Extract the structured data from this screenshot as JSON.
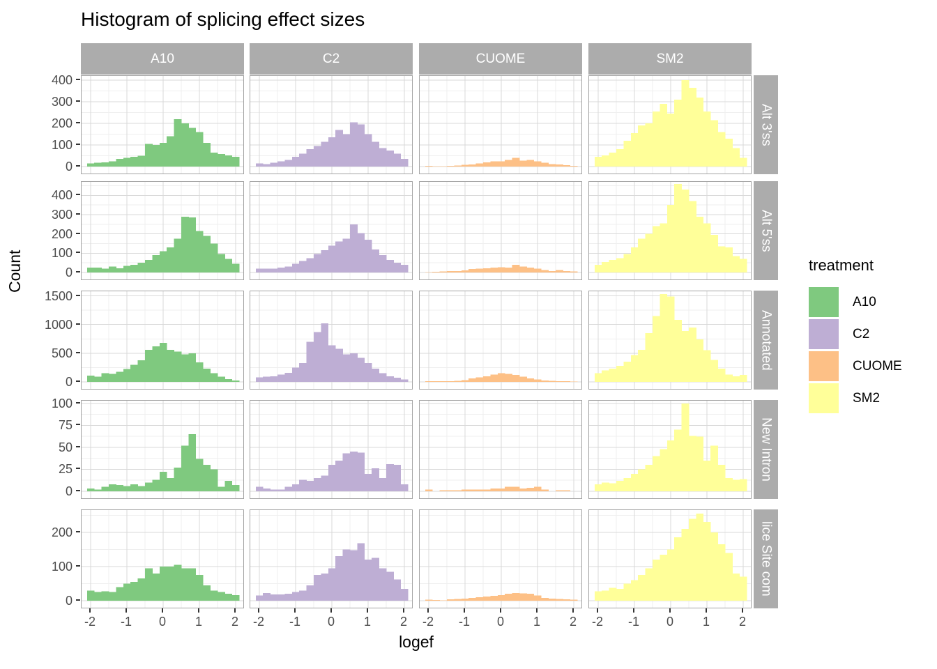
{
  "title": "Histogram of splicing effect sizes",
  "axes": {
    "x_label": "logef",
    "y_label": "Count",
    "x_ticks": [
      -2,
      -1,
      0,
      1,
      2
    ]
  },
  "legend": {
    "title": "treatment",
    "entries": [
      {
        "label": "A10",
        "color": "#7FC97F"
      },
      {
        "label": "C2",
        "color": "#BEAED4"
      },
      {
        "label": "CUOME",
        "color": "#FDC086"
      },
      {
        "label": "SM2",
        "color": "#FFFF99"
      }
    ]
  },
  "facets": {
    "columns": [
      "A10",
      "C2",
      "CUOME",
      "SM2"
    ],
    "rows": [
      "Alt 3'ss",
      "Alt 5'ss",
      "Annotated",
      "New Intron",
      "lice Site com"
    ]
  },
  "style": {
    "strip_bg": "#ACACAC",
    "strip_text": "#FFFFFF",
    "grid_major": "#D9D9D9",
    "grid_minor": "#EFEFEF",
    "panel_border": "#A3A3A3",
    "tick_text": "#4D4D4D"
  },
  "chart_data": {
    "type": "bar",
    "subtype": "faceted-histogram-grid",
    "title": "Histogram of splicing effect sizes",
    "xlabel": "logef",
    "ylabel": "Count",
    "x_ticks": [
      -2,
      -1,
      0,
      1,
      2
    ],
    "x_range": [
      -2.25,
      2.25
    ],
    "bin_width": 0.2,
    "bin_centers": [
      -2.0,
      -1.8,
      -1.6,
      -1.4,
      -1.2,
      -1.0,
      -0.8,
      -0.6,
      -0.4,
      -0.2,
      0.0,
      0.2,
      0.4,
      0.6,
      0.8,
      1.0,
      1.2,
      1.4,
      1.6,
      1.8,
      2.0
    ],
    "columns": [
      "A10",
      "C2",
      "CUOME",
      "SM2"
    ],
    "rows": [
      {
        "label": "Alt 3'ss",
        "y_ticks": [
          0,
          100,
          200,
          300,
          400
        ],
        "y_max": 420,
        "counts": {
          "A10": [
            15,
            18,
            20,
            25,
            35,
            40,
            45,
            50,
            105,
            100,
            110,
            140,
            220,
            200,
            180,
            160,
            110,
            65,
            58,
            52,
            45
          ],
          "C2": [
            15,
            12,
            18,
            25,
            30,
            45,
            60,
            80,
            95,
            115,
            135,
            170,
            150,
            205,
            195,
            150,
            115,
            85,
            75,
            60,
            35
          ],
          "CUOME": [
            3,
            1,
            2,
            3,
            5,
            8,
            10,
            15,
            20,
            25,
            25,
            30,
            40,
            28,
            30,
            25,
            18,
            12,
            10,
            6,
            3
          ],
          "SM2": [
            45,
            52,
            65,
            80,
            120,
            155,
            190,
            200,
            255,
            290,
            245,
            310,
            400,
            365,
            320,
            255,
            215,
            160,
            130,
            85,
            40
          ]
        }
      },
      {
        "label": "Alt 5'ss",
        "y_ticks": [
          0,
          100,
          200,
          300,
          400
        ],
        "y_max": 470,
        "counts": {
          "A10": [
            25,
            25,
            20,
            30,
            22,
            35,
            40,
            50,
            65,
            90,
            110,
            130,
            175,
            290,
            285,
            215,
            190,
            150,
            95,
            70,
            45
          ],
          "C2": [
            20,
            20,
            20,
            25,
            30,
            45,
            60,
            75,
            95,
            115,
            140,
            160,
            175,
            250,
            205,
            170,
            120,
            90,
            65,
            50,
            40
          ],
          "CUOME": [
            2,
            3,
            5,
            8,
            8,
            10,
            18,
            20,
            22,
            25,
            28,
            25,
            40,
            30,
            25,
            20,
            12,
            8,
            12,
            8,
            5
          ],
          "SM2": [
            40,
            55,
            65,
            75,
            95,
            130,
            175,
            200,
            240,
            255,
            350,
            460,
            430,
            370,
            290,
            255,
            195,
            135,
            130,
            85,
            70
          ]
        }
      },
      {
        "label": "Annotated",
        "y_ticks": [
          0,
          500,
          1000,
          1500
        ],
        "y_max": 1580,
        "counts": {
          "A10": [
            110,
            90,
            150,
            140,
            175,
            225,
            300,
            375,
            560,
            620,
            680,
            560,
            530,
            480,
            500,
            340,
            230,
            150,
            90,
            50,
            25
          ],
          "C2": [
            80,
            90,
            100,
            130,
            160,
            250,
            330,
            700,
            870,
            1020,
            640,
            580,
            480,
            500,
            420,
            330,
            230,
            150,
            100,
            70,
            45
          ],
          "CUOME": [
            10,
            10,
            10,
            15,
            20,
            30,
            60,
            80,
            100,
            130,
            150,
            140,
            120,
            90,
            60,
            40,
            25,
            20,
            15,
            10,
            8
          ],
          "SM2": [
            150,
            200,
            230,
            280,
            350,
            470,
            560,
            850,
            1150,
            1530,
            1490,
            1080,
            890,
            950,
            740,
            550,
            380,
            230,
            130,
            100,
            120
          ]
        }
      },
      {
        "label": "New Intron",
        "y_ticks": [
          0,
          25,
          50,
          75,
          100
        ],
        "y_max": 103,
        "counts": {
          "A10": [
            3,
            2,
            5,
            8,
            7,
            6,
            8,
            6,
            10,
            13,
            22,
            15,
            27,
            52,
            65,
            37,
            30,
            25,
            5,
            12,
            7
          ],
          "C2": [
            5,
            3,
            2,
            2,
            5,
            8,
            13,
            12,
            15,
            18,
            30,
            35,
            43,
            45,
            44,
            20,
            26,
            15,
            31,
            30,
            8
          ],
          "CUOME": [
            2,
            0,
            1,
            1,
            1,
            2,
            2,
            2,
            2,
            3,
            3,
            5,
            5,
            3,
            4,
            5,
            2,
            0,
            1,
            1,
            0
          ],
          "SM2": [
            8,
            10,
            9,
            12,
            15,
            20,
            25,
            30,
            40,
            48,
            58,
            70,
            100,
            63,
            62,
            35,
            52,
            30,
            15,
            13,
            14
          ]
        }
      },
      {
        "label": "lice Site com",
        "y_ticks": [
          0,
          100,
          200
        ],
        "y_max": 265,
        "counts": {
          "A10": [
            30,
            25,
            28,
            25,
            40,
            50,
            55,
            65,
            95,
            80,
            100,
            100,
            105,
            95,
            95,
            75,
            45,
            30,
            25,
            20,
            16
          ],
          "C2": [
            15,
            22,
            18,
            18,
            20,
            25,
            30,
            45,
            75,
            80,
            95,
            130,
            150,
            148,
            168,
            120,
            125,
            95,
            85,
            62,
            35
          ],
          "CUOME": [
            3,
            2,
            1,
            4,
            5,
            6,
            8,
            10,
            12,
            14,
            16,
            20,
            22,
            21,
            20,
            15,
            8,
            6,
            5,
            4,
            3
          ],
          "SM2": [
            28,
            30,
            38,
            35,
            50,
            60,
            75,
            95,
            120,
            135,
            150,
            185,
            210,
            240,
            255,
            230,
            200,
            165,
            140,
            80,
            70
          ]
        }
      }
    ],
    "legend_position": "right",
    "grid": true
  }
}
